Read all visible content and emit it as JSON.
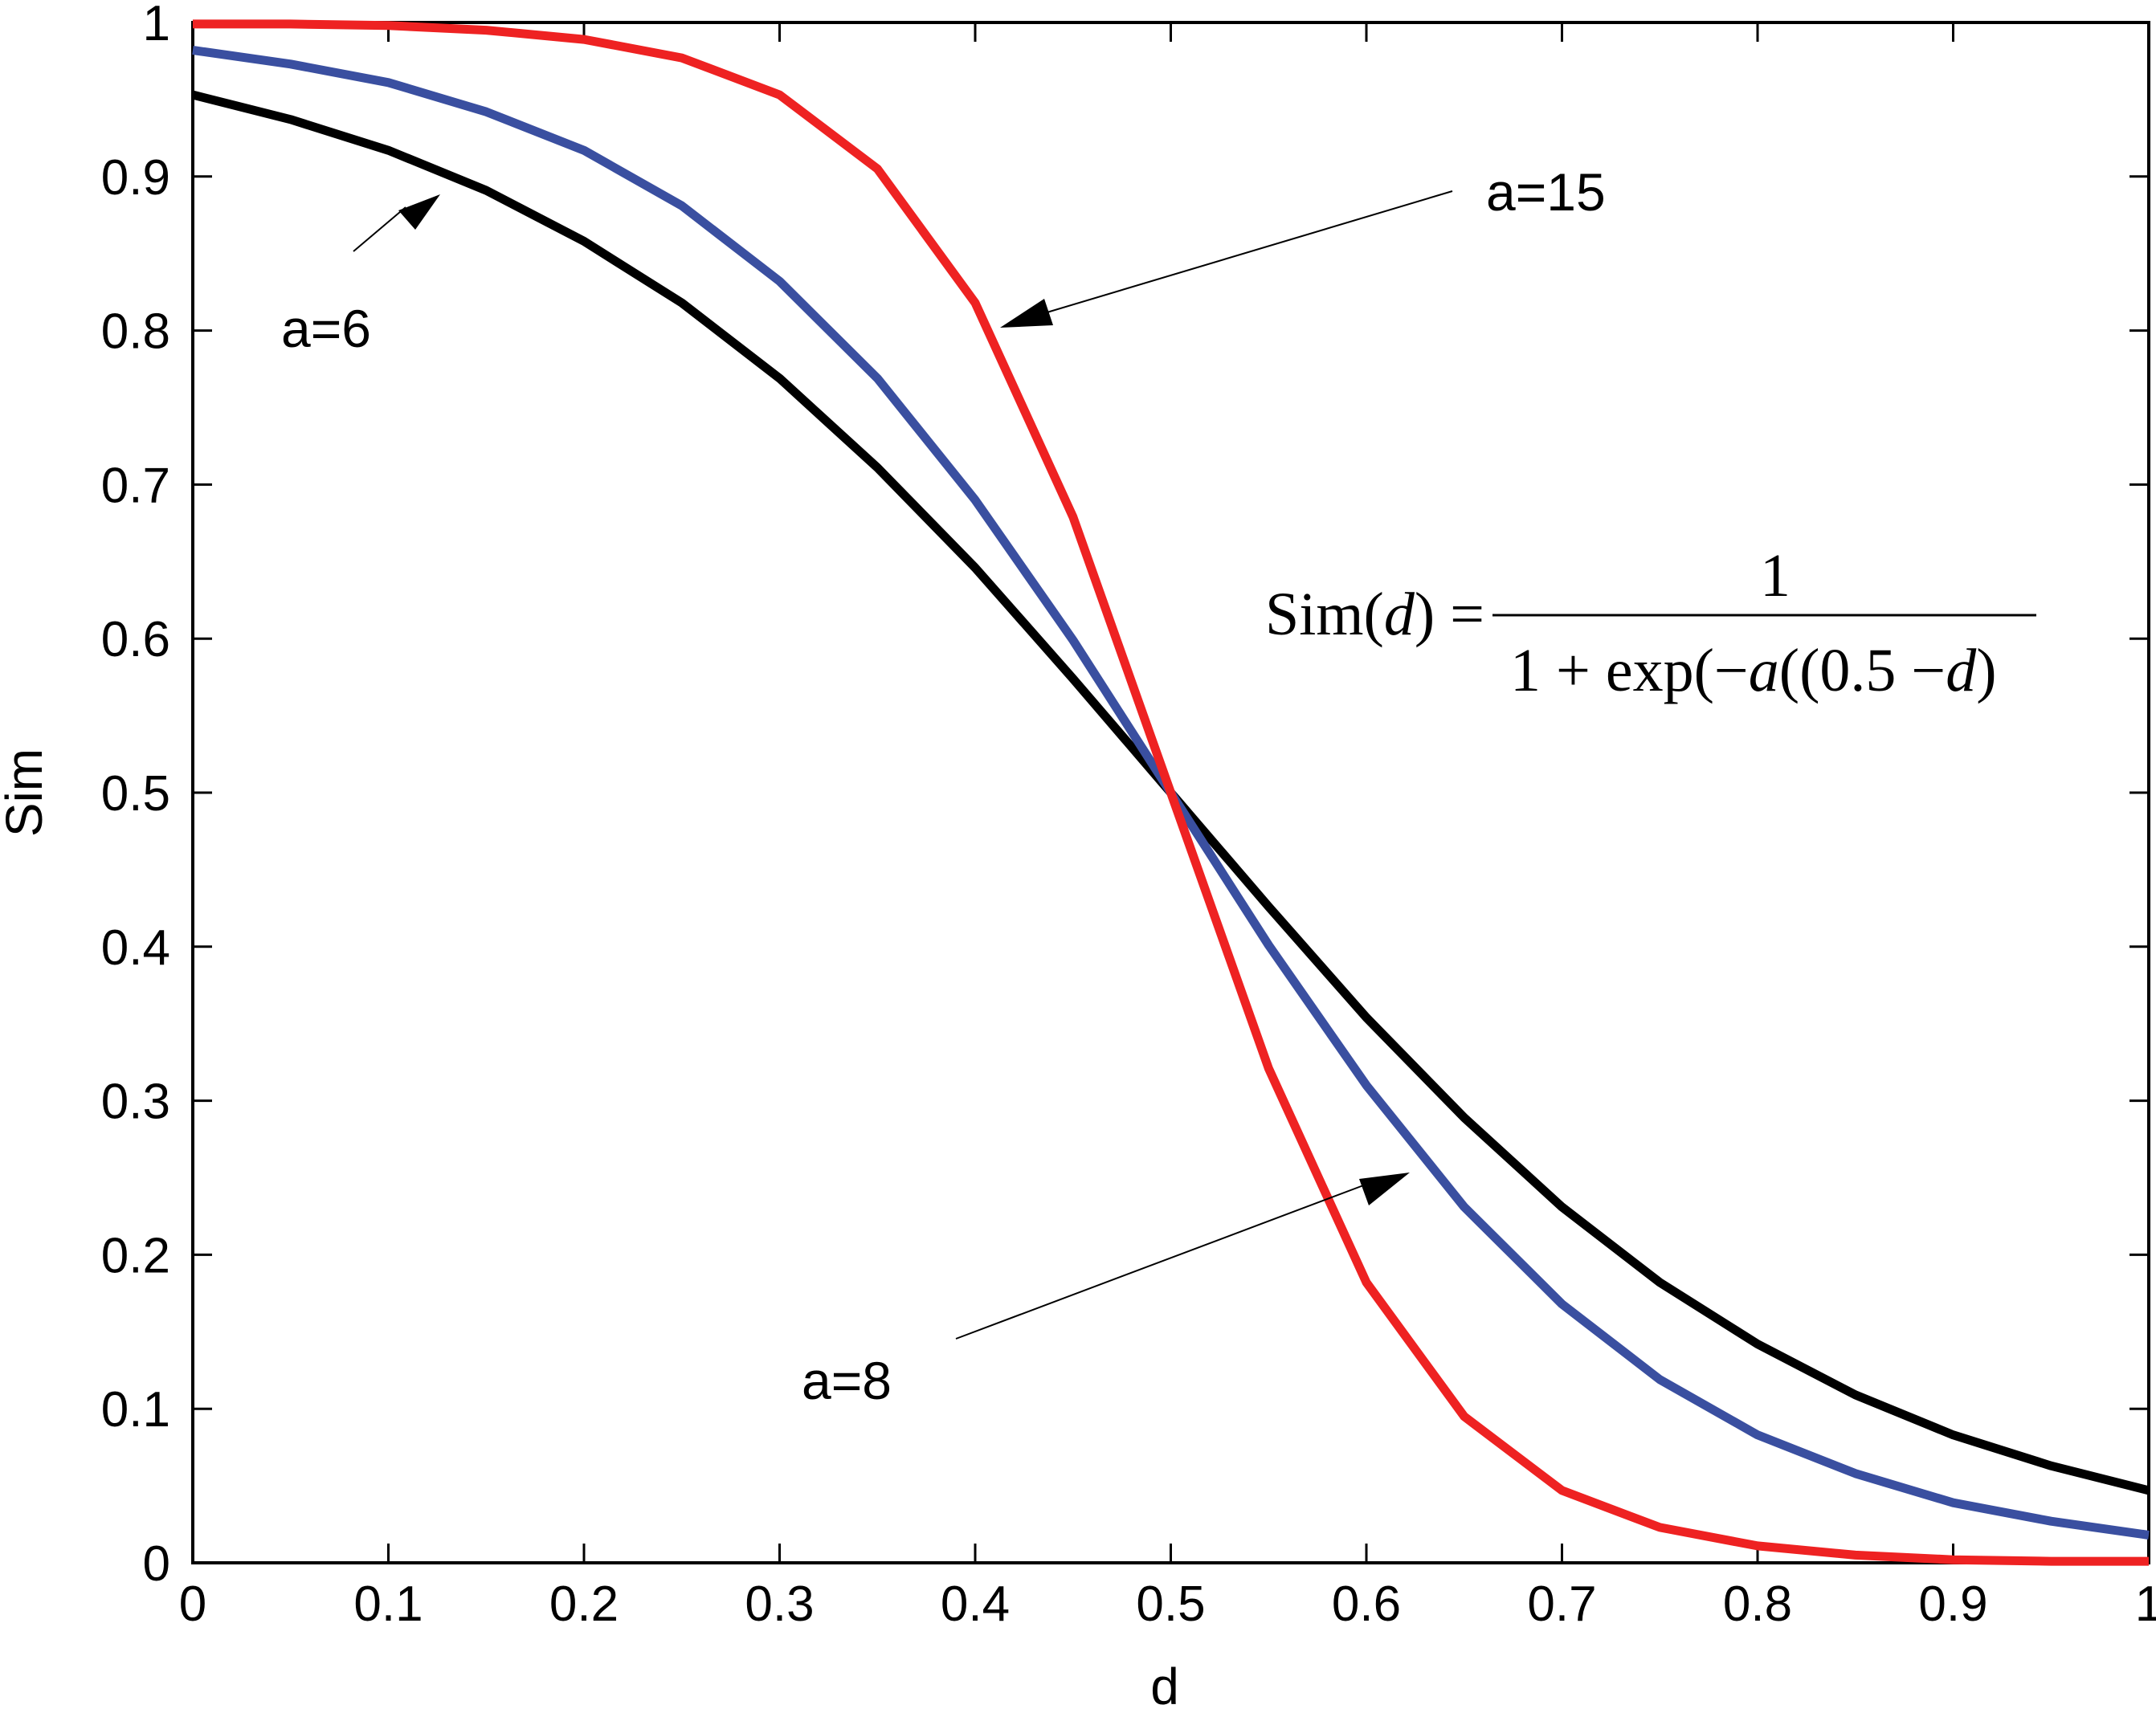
{
  "chart_data": {
    "type": "line",
    "title": "",
    "xlabel": "d",
    "ylabel": "Sim",
    "xlim": [
      0,
      1
    ],
    "ylim": [
      0,
      1
    ],
    "xticks": [
      "0",
      "0.1",
      "0.2",
      "0.3",
      "0.4",
      "0.5",
      "0.6",
      "0.7",
      "0.8",
      "0.9",
      "1"
    ],
    "yticks": [
      "0",
      "0.1",
      "0.2",
      "0.3",
      "0.4",
      "0.5",
      "0.6",
      "0.7",
      "0.8",
      "0.9",
      "1"
    ],
    "grid": false,
    "x": [
      0,
      0.05,
      0.1,
      0.15,
      0.2,
      0.25,
      0.3,
      0.35,
      0.4,
      0.45,
      0.5,
      0.55,
      0.6,
      0.65,
      0.7,
      0.75,
      0.8,
      0.85,
      0.9,
      0.95,
      1
    ],
    "series": [
      {
        "color": "#000000",
        "values": [
          0.953,
          0.937,
          0.917,
          0.891,
          0.858,
          0.818,
          0.769,
          0.711,
          0.646,
          0.574,
          0.5,
          0.426,
          0.354,
          0.289,
          0.231,
          0.182,
          0.142,
          0.109,
          0.083,
          0.063,
          0.047
        ]
      },
      {
        "color": "#3a4fa0",
        "values": [
          0.982,
          0.973,
          0.961,
          0.942,
          0.917,
          0.881,
          0.832,
          0.769,
          0.69,
          0.599,
          0.5,
          0.401,
          0.31,
          0.231,
          0.168,
          0.119,
          0.083,
          0.058,
          0.039,
          0.027,
          0.018
        ]
      },
      {
        "color": "#ee2222",
        "values": [
          0.999,
          0.999,
          0.998,
          0.995,
          0.989,
          0.977,
          0.953,
          0.905,
          0.818,
          0.679,
          0.5,
          0.321,
          0.182,
          0.095,
          0.047,
          0.023,
          0.011,
          0.005,
          0.002,
          0.001,
          0.001
        ]
      }
    ],
    "annotations": [
      {
        "text": "a=6"
      },
      {
        "text": "a=15"
      },
      {
        "text": "a=8"
      }
    ],
    "formula": {
      "lhs_prefix": "Sim(",
      "lhs_var": "d",
      "lhs_suffix": ") =",
      "numerator": "1",
      "den_prefix": "1 + exp(−",
      "den_var_a": "a",
      "den_mid": "((0.5 −",
      "den_var_d": "d",
      "den_suffix": ")"
    }
  }
}
